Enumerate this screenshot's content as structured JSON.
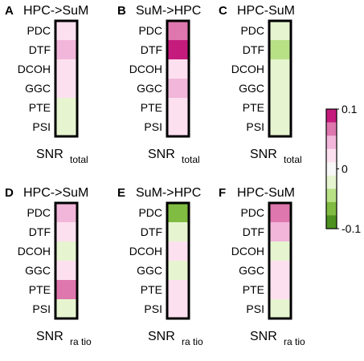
{
  "chart_data": {
    "type": "heatmap",
    "row_labels": [
      "PDC",
      "DTF",
      "DCOH",
      "GGC",
      "PTE",
      "PSI"
    ],
    "colorbar": {
      "min": -0.1,
      "max": 0.1,
      "tick_labels": [
        "0.1",
        "0",
        "-0.1"
      ],
      "colors": [
        "#c51b7d",
        "#de77ae",
        "#f1b6da",
        "#fde0ef",
        "#f7f7f7",
        "#e6f5d0",
        "#b8e186",
        "#7fbc41",
        "#4d9221"
      ]
    },
    "panels": [
      {
        "letter": "A",
        "title": "HPC->SuM",
        "xlabel": "SNR",
        "xlabel_sub": "total",
        "values": [
          0.0125,
          0.05,
          0.0125,
          0.0125,
          -0.0125,
          -0.0125
        ]
      },
      {
        "letter": "B",
        "title": "SuM->HPC",
        "xlabel": "SNR",
        "xlabel_sub": "total",
        "values": [
          0.075,
          0.1,
          0.0125,
          0.05,
          0.0125,
          0.0125
        ]
      },
      {
        "letter": "C",
        "title": "HPC-SuM",
        "xlabel": "SNR",
        "xlabel_sub": "total",
        "values": [
          -0.0125,
          -0.05,
          -0.0125,
          -0.0125,
          -0.0125,
          -0.0125
        ]
      },
      {
        "letter": "D",
        "title": "HPC->SuM",
        "xlabel": "SNR",
        "xlabel_sub": "ra tio",
        "values": [
          0.05,
          0.0125,
          -0.0125,
          0.0125,
          0.075,
          -0.0125
        ]
      },
      {
        "letter": "E",
        "title": "SuM->HPC",
        "xlabel": "SNR",
        "xlabel_sub": "ra tio",
        "values": [
          -0.075,
          -0.0125,
          0.0125,
          -0.0125,
          0.0125,
          0.0125
        ]
      },
      {
        "letter": "F",
        "title": "HPC-SuM",
        "xlabel": "SNR",
        "xlabel_sub": "ra tio",
        "values": [
          0.075,
          0.05,
          -0.0125,
          0.0125,
          0.0125,
          -0.0125
        ]
      }
    ]
  }
}
